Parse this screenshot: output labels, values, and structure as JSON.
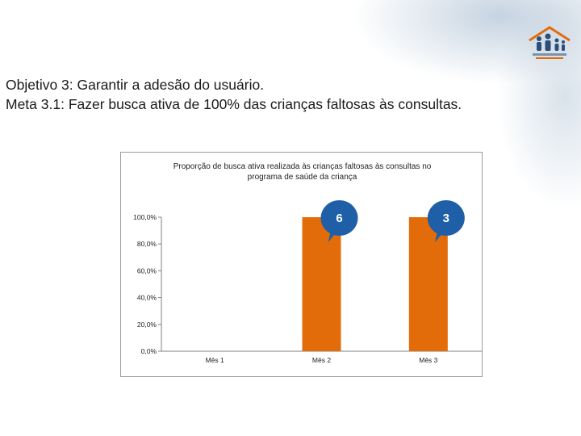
{
  "heading": {
    "line1": "Objetivo 3: Garantir a adesão do usuário.",
    "line2": "Meta 3.1: Fazer busca ativa de 100% das crianças faltosas às consultas."
  },
  "colors": {
    "bar": "#e36c0a",
    "callout": "#1f5fa8",
    "axis": "#808080"
  },
  "chart_data": {
    "type": "bar",
    "title_line1": "Proporção de busca ativa realizada às crianças faltosas às consultas no",
    "title_line2": "programa de saúde da criança",
    "categories": [
      "Mês 1",
      "Mês 2",
      "Mês 3"
    ],
    "values": [
      0,
      100,
      100
    ],
    "ylim": [
      0,
      100
    ],
    "y_ticks": [
      {
        "value": 0,
        "label": "0,0%"
      },
      {
        "value": 20,
        "label": "20,0%"
      },
      {
        "value": 40,
        "label": "40,0%"
      },
      {
        "value": 60,
        "label": "60,0%"
      },
      {
        "value": 80,
        "label": "80,0%"
      },
      {
        "value": 100,
        "label": "100,0%"
      }
    ],
    "annotations": [
      {
        "category": "Mês 2",
        "text": "6"
      },
      {
        "category": "Mês 3",
        "text": "3"
      }
    ],
    "grid": false,
    "legend": "none"
  }
}
